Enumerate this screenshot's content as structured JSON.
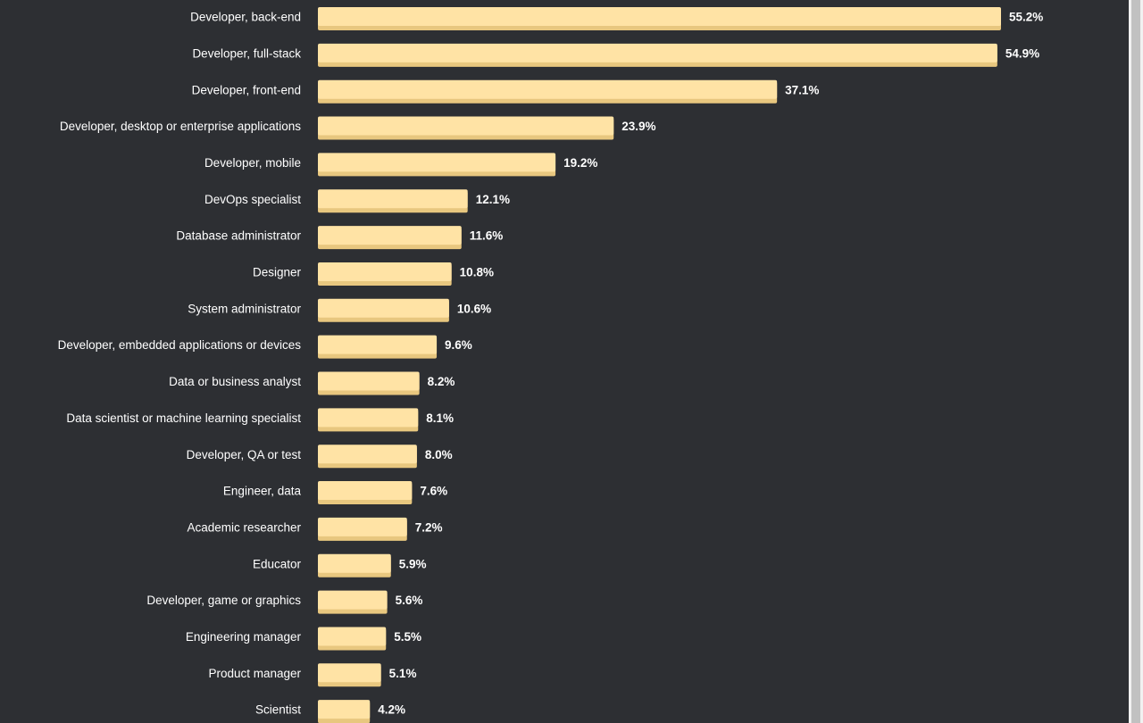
{
  "chart_data": {
    "type": "bar",
    "orientation": "horizontal",
    "categories": [
      "Developer, back-end",
      "Developer, full-stack",
      "Developer, front-end",
      "Developer, desktop or enterprise applications",
      "Developer, mobile",
      "DevOps specialist",
      "Database administrator",
      "Designer",
      "System administrator",
      "Developer, embedded applications or devices",
      "Data or business analyst",
      "Data scientist or machine learning specialist",
      "Developer, QA or test",
      "Engineer, data",
      "Academic researcher",
      "Educator",
      "Developer, game or graphics",
      "Engineering manager",
      "Product manager",
      "Scientist"
    ],
    "values": [
      55.2,
      54.9,
      37.1,
      23.9,
      19.2,
      12.1,
      11.6,
      10.8,
      10.6,
      9.6,
      8.2,
      8.1,
      8.0,
      7.6,
      7.2,
      5.9,
      5.6,
      5.5,
      5.1,
      4.2
    ],
    "value_labels": [
      "55.2%",
      "54.9%",
      "37.1%",
      "23.9%",
      "19.2%",
      "12.1%",
      "11.6%",
      "10.8%",
      "10.6%",
      "9.6%",
      "8.2%",
      "8.1%",
      "8.0%",
      "7.6%",
      "7.2%",
      "5.9%",
      "5.6%",
      "5.5%",
      "5.1%",
      "4.2%"
    ],
    "xlim": [
      0,
      55.2
    ],
    "grid": false,
    "legend": "none",
    "colors": {
      "background": "#2d2f33",
      "bar": "#ffe3a5",
      "bar_shadow": "#e8c77f",
      "text": "#ffffff"
    }
  }
}
